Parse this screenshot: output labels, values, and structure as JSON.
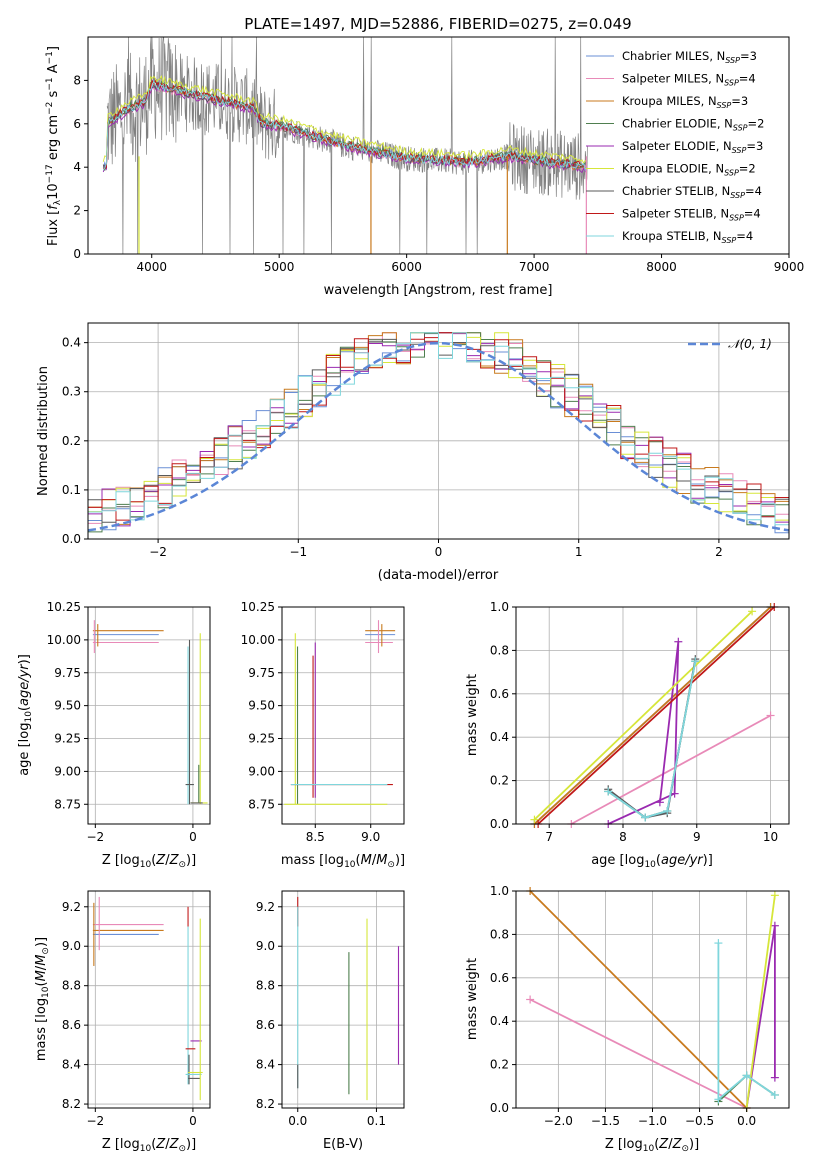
{
  "title": "PLATE=1497, MJD=52886, FIBERID=0275, z=0.049",
  "colors": {
    "Chabrier MILES": "#6a8fd6",
    "Salpeter MILES": "#e88ab8",
    "Kroupa MILES": "#c87a1e",
    "Chabrier ELODIE": "#4f7f4f",
    "Salpeter ELODIE": "#9a2ab0",
    "Kroupa ELODIE": "#d6e63a",
    "Chabrier STELIB": "#5a5a5a",
    "Salpeter STELIB": "#c01818",
    "Kroupa STELIB": "#7fd6dc",
    "data": "#808080",
    "normal": "#5b86d6"
  },
  "chart_data": [
    {
      "id": "spectrum",
      "type": "line",
      "xlabel": "wavelength [Angstrom, rest frame]",
      "ylabel": "Flux [f_λ10^-17 erg cm^-2 s^-1 A^-1]",
      "xlim": [
        3500,
        9000
      ],
      "ylim": [
        0,
        10
      ],
      "xticks": [
        4000,
        5000,
        6000,
        7000,
        8000,
        9000
      ],
      "yticks": [
        0,
        2,
        4,
        6,
        8
      ],
      "continuum": {
        "x": [
          3650,
          3800,
          3950,
          4000,
          4200,
          4500,
          4800,
          4860,
          5000,
          5500,
          6000,
          6500,
          6800,
          7000,
          7400
        ],
        "y": [
          6.0,
          6.6,
          7.0,
          7.8,
          7.5,
          7.1,
          6.7,
          6.0,
          5.9,
          5.0,
          4.4,
          4.2,
          4.5,
          4.3,
          4.0
        ]
      },
      "legend": [
        {
          "name": "Chabrier MILES",
          "nssp": "3"
        },
        {
          "name": "Salpeter MILES",
          "nssp": "4"
        },
        {
          "name": "Kroupa MILES",
          "nssp": "3"
        },
        {
          "name": "Chabrier ELODIE",
          "nssp": "2"
        },
        {
          "name": "Salpeter ELODIE",
          "nssp": "3"
        },
        {
          "name": "Kroupa ELODIE",
          "nssp": "2"
        },
        {
          "name": "Chabrier STELIB",
          "nssp": "4"
        },
        {
          "name": "Salpeter STELIB",
          "nssp": "4"
        },
        {
          "name": "Kroupa STELIB",
          "nssp": "4"
        }
      ],
      "legend_position": "right"
    },
    {
      "id": "residuals",
      "type": "line",
      "xlabel": "(data-model)/error",
      "ylabel": "Normed distribution",
      "xlim": [
        -2.5,
        2.5
      ],
      "ylim": [
        0,
        0.44
      ],
      "xticks": [
        -2,
        -1,
        0,
        1,
        2
      ],
      "yticks": [
        0.0,
        0.1,
        0.2,
        0.3,
        0.4
      ],
      "reference": {
        "name": "N(0,1)",
        "mu": 0,
        "sigma": 1
      },
      "grid": true,
      "legend_position": "top-right"
    },
    {
      "id": "age_vs_Z",
      "type": "scatter",
      "xlabel": "Z [log10(Z/Z⊙)]",
      "ylabel": "age [log10(age/yr)]",
      "xlim": [
        -2.15,
        0.35
      ],
      "ylim": [
        8.6,
        10.25
      ],
      "xticks": [
        -2,
        0
      ],
      "yticks": [
        8.75,
        9.0,
        9.25,
        9.5,
        9.75,
        10.0,
        10.25
      ],
      "grid": true
    },
    {
      "id": "age_vs_mass",
      "type": "scatter",
      "xlabel": "mass [log10(M/M⊙)]",
      "xlim": [
        8.2,
        9.3
      ],
      "ylim": [
        8.6,
        10.25
      ],
      "xticks": [
        8.5,
        9.0
      ],
      "yticks": [
        8.75,
        9.0,
        9.25,
        9.5,
        9.75,
        10.0,
        10.25
      ],
      "grid": true
    },
    {
      "id": "weight_vs_age",
      "type": "line",
      "xlabel": "age [log10(age/yr)]",
      "ylabel": "mass weight",
      "xlim": [
        6.55,
        10.25
      ],
      "ylim": [
        0,
        1
      ],
      "xticks": [
        7,
        8,
        9,
        10
      ],
      "yticks": [
        0.0,
        0.2,
        0.4,
        0.6,
        0.8,
        1.0
      ],
      "grid": true,
      "series": [
        {
          "name": "Chabrier MILES",
          "x": [
            6.8,
            10.0
          ],
          "y": [
            0.0,
            1.0
          ]
        },
        {
          "name": "Salpeter MILES",
          "x": [
            7.3,
            10.0
          ],
          "y": [
            0.0,
            0.5
          ]
        },
        {
          "name": "Kroupa MILES",
          "x": [
            6.8,
            10.0
          ],
          "y": [
            0.0,
            1.0
          ]
        },
        {
          "name": "Chabrier ELODIE",
          "x": [
            7.8,
            8.3,
            8.6,
            8.98
          ],
          "y": [
            0.15,
            0.03,
            0.06,
            0.75
          ]
        },
        {
          "name": "Salpeter ELODIE",
          "x": [
            7.8,
            8.7,
            8.75,
            8.5
          ],
          "y": [
            0.0,
            0.14,
            0.84,
            0.1
          ]
        },
        {
          "name": "Kroupa ELODIE",
          "x": [
            6.8,
            9.75
          ],
          "y": [
            0.02,
            0.98
          ]
        },
        {
          "name": "Chabrier STELIB",
          "x": [
            7.8,
            8.3,
            8.6,
            8.98
          ],
          "y": [
            0.16,
            0.03,
            0.05,
            0.76
          ]
        },
        {
          "name": "Salpeter STELIB",
          "x": [
            6.85,
            10.05
          ],
          "y": [
            0.0,
            1.0
          ]
        },
        {
          "name": "Kroupa STELIB",
          "x": [
            7.8,
            8.3,
            8.6,
            8.98
          ],
          "y": [
            0.15,
            0.03,
            0.06,
            0.75
          ]
        }
      ]
    },
    {
      "id": "mass_vs_Z",
      "type": "scatter",
      "xlabel": "Z [log10(Z/Z⊙)]",
      "ylabel": "mass [log10(M/M⊙)]",
      "xlim": [
        -2.15,
        0.35
      ],
      "ylim": [
        8.18,
        9.28
      ],
      "xticks": [
        -2,
        0
      ],
      "yticks": [
        8.2,
        8.4,
        8.6,
        8.8,
        9.0,
        9.2
      ],
      "grid": true
    },
    {
      "id": "mass_vs_ebv",
      "type": "scatter",
      "xlabel": "E(B-V)",
      "xlim": [
        -0.02,
        0.135
      ],
      "ylim": [
        8.18,
        9.28
      ],
      "xticks": [
        0.0,
        0.1
      ],
      "yticks": [
        8.2,
        8.4,
        8.6,
        8.8,
        9.0,
        9.2
      ],
      "grid": true
    },
    {
      "id": "weight_vs_Z",
      "type": "line",
      "xlabel": "Z [log10(Z/Z⊙)]",
      "ylabel": "mass weight",
      "xlim": [
        -2.45,
        0.45
      ],
      "ylim": [
        0,
        1
      ],
      "xticks": [
        -2.0,
        -1.5,
        -1.0,
        -0.5,
        0.0
      ],
      "yticks": [
        0.0,
        0.2,
        0.4,
        0.6,
        0.8,
        1.0
      ],
      "grid": true,
      "series": [
        {
          "name": "Salpeter MILES",
          "x": [
            -2.3,
            0.0
          ],
          "y": [
            0.5,
            0.0
          ]
        },
        {
          "name": "Kroupa MILES",
          "x": [
            -2.3,
            0.0
          ],
          "y": [
            1.0,
            0.0
          ]
        },
        {
          "name": "Chabrier ELODIE",
          "x": [
            -0.3,
            0.0,
            0.3
          ],
          "y": [
            0.03,
            0.15,
            0.06
          ]
        },
        {
          "name": "Salpeter ELODIE",
          "x": [
            0.0,
            0.3,
            0.3
          ],
          "y": [
            0.0,
            0.84,
            0.14
          ]
        },
        {
          "name": "Kroupa ELODIE",
          "x": [
            0.0,
            0.3
          ],
          "y": [
            0.0,
            0.98
          ]
        },
        {
          "name": "Kroupa STELIB",
          "x": [
            -0.3,
            -0.3,
            0.0,
            0.3
          ],
          "y": [
            0.76,
            0.04,
            0.15,
            0.06
          ]
        }
      ]
    }
  ],
  "tick_labels": {
    "spectrum_x": [
      "4000",
      "5000",
      "6000",
      "7000",
      "8000",
      "9000"
    ],
    "spectrum_y": [
      "0",
      "2",
      "4",
      "6",
      "8"
    ],
    "resid_x": [
      "−2",
      "−1",
      "0",
      "1",
      "2"
    ],
    "resid_y": [
      "0.0",
      "0.1",
      "0.2",
      "0.3",
      "0.4"
    ],
    "age_y": [
      "8.75",
      "9.00",
      "9.25",
      "9.50",
      "9.75",
      "10.00",
      "10.25"
    ],
    "z_x": [
      "−2",
      "0"
    ],
    "mass_x": [
      "8.5",
      "9.0"
    ],
    "wage_x": [
      "7",
      "8",
      "9",
      "10"
    ],
    "weight_y": [
      "0.0",
      "0.2",
      "0.4",
      "0.6",
      "0.8",
      "1.0"
    ],
    "mass_y": [
      "8.2",
      "8.4",
      "8.6",
      "8.8",
      "9.0",
      "9.2"
    ],
    "ebv_x": [
      "0.0",
      "0.1"
    ],
    "wz_x": [
      "−2.0",
      "−1.5",
      "−1.0",
      "−0.5",
      "0.0"
    ]
  }
}
